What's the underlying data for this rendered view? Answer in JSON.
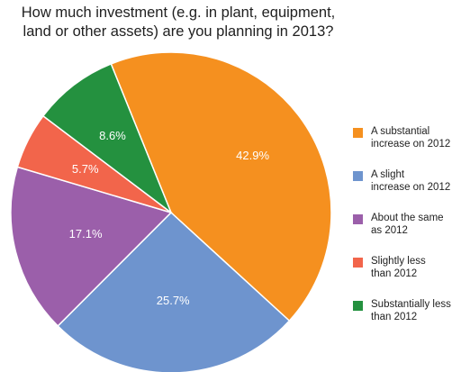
{
  "title_lines": [
    "How much investment (e.g. in plant, equipment,",
    "land or other assets) are you planning in 2013?"
  ],
  "chart_data": {
    "type": "pie",
    "title": "How much investment (e.g. in plant, equipment, land or other assets) are you planning in 2013?",
    "legend_position": "right",
    "slices": [
      {
        "label": "A substantial\nincrease on 2012",
        "value": 42.9,
        "display": "42.9%",
        "color": "#F5901F"
      },
      {
        "label": "A slight\nincrease on 2012",
        "value": 25.7,
        "display": "25.7%",
        "color": "#6E94CE"
      },
      {
        "label": "About the same\nas 2012",
        "value": 17.1,
        "display": "17.1%",
        "color": "#9B5FAA"
      },
      {
        "label": "Slightly less\nthan 2012",
        "value": 5.7,
        "display": "5.7%",
        "color": "#F2654B"
      },
      {
        "label": "Substantially less\nthan 2012",
        "value": 8.6,
        "display": "8.6%",
        "color": "#24913F"
      }
    ]
  }
}
